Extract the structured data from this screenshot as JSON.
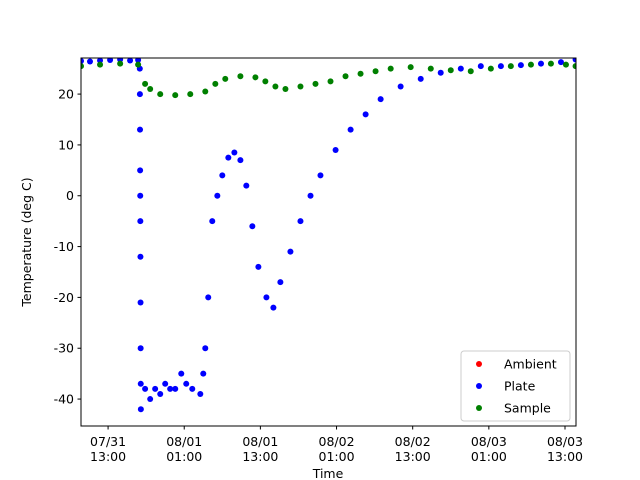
{
  "chart_data": {
    "type": "scatter",
    "x_label": "Time",
    "y_label": "Temperature (deg C)",
    "xlim": [
      "07/31 08:44",
      "08/03 14:44"
    ],
    "xticks": [
      "07/31 13:00",
      "08/01 01:00",
      "08/01 13:00",
      "08/02 01:00",
      "08/02 13:00",
      "08/03 01:00",
      "08/03 13:00"
    ],
    "ylim": [
      -45.3,
      27.1
    ],
    "yticks": [
      -40,
      -30,
      -20,
      -10,
      0,
      10,
      20
    ],
    "legend": "lower right",
    "series": [
      {
        "name": "Ambient",
        "color": "#ff0000",
        "x": [],
        "values": []
      },
      {
        "name": "Plate",
        "color": "#0000ff",
        "x": [
          "07/31 08:44",
          "07/31 10:09",
          "07/31 11:44",
          "07/31 13:19",
          "07/31 14:54",
          "07/31 16:28",
          "07/31 17:44",
          "07/31 18:00",
          "07/31 18:01",
          "07/31 18:02",
          "07/31 18:03",
          "07/31 18:04",
          "07/31 18:05",
          "07/31 18:06",
          "07/31 18:07",
          "07/31 18:08",
          "07/31 18:09",
          "07/31 18:10",
          "07/31 18:50",
          "07/31 19:38",
          "07/31 20:25",
          "07/31 21:13",
          "07/31 22:00",
          "07/31 22:47",
          "07/31 23:35",
          "08/01 00:32",
          "08/01 01:19",
          "08/01 02:16",
          "08/01 03:32",
          "08/01 04:00",
          "08/01 04:19",
          "08/01 04:47",
          "08/01 05:25",
          "08/01 06:13",
          "08/01 07:00",
          "08/01 07:57",
          "08/01 08:54",
          "08/01 09:51",
          "08/01 10:47",
          "08/01 11:44",
          "08/01 12:41",
          "08/01 13:57",
          "08/01 15:03",
          "08/01 16:09",
          "08/01 17:44",
          "08/01 19:19",
          "08/01 20:54",
          "08/01 22:28",
          "08/02 00:51",
          "08/02 03:13",
          "08/02 05:35",
          "08/02 07:57",
          "08/02 11:06",
          "08/02 14:16",
          "08/02 17:25",
          "08/02 20:35",
          "08/02 23:44",
          "08/03 02:54",
          "08/03 06:03",
          "08/03 09:13",
          "08/03 12:22",
          "08/03 14:40"
        ],
        "values": [
          26.5,
          26.4,
          26.6,
          26.7,
          26.8,
          26.6,
          26.7,
          25,
          20,
          13,
          5,
          0,
          -5,
          -12,
          -21,
          -30,
          -37,
          -42,
          -38,
          -40,
          -38,
          -39,
          -37,
          -38,
          -38,
          -35,
          -37,
          -38,
          -39,
          -35,
          -30,
          -20,
          -5,
          0,
          4,
          7.5,
          8.5,
          7,
          2,
          -6,
          -14,
          -20,
          -22,
          -17,
          -11,
          -5,
          0,
          4,
          9,
          13,
          16,
          19,
          21.5,
          23,
          24.2,
          25,
          25.5,
          25.5,
          25.7,
          26,
          26.3,
          26.8
        ]
      },
      {
        "name": "Sample",
        "color": "#008000",
        "x": [
          "07/31 08:44",
          "07/31 11:44",
          "07/31 14:54",
          "07/31 17:44",
          "07/31 18:50",
          "07/31 19:38",
          "07/31 21:13",
          "07/31 23:35",
          "08/01 01:57",
          "08/01 04:19",
          "08/01 05:54",
          "08/01 07:28",
          "08/01 09:51",
          "08/01 12:13",
          "08/01 13:47",
          "08/01 15:22",
          "08/01 16:57",
          "08/01 19:19",
          "08/01 21:41",
          "08/02 00:03",
          "08/02 02:25",
          "08/02 04:47",
          "08/02 07:09",
          "08/02 09:32",
          "08/02 12:41",
          "08/02 15:51",
          "08/02 19:00",
          "08/02 22:09",
          "08/03 01:19",
          "08/03 04:28",
          "08/03 07:38",
          "08/03 10:47",
          "08/03 13:09",
          "08/03 14:40"
        ],
        "values": [
          25.5,
          25.8,
          26,
          25.8,
          22,
          21,
          20,
          19.8,
          20,
          20.5,
          22,
          23,
          23.5,
          23.3,
          22.5,
          21.5,
          21,
          21.5,
          22,
          22.5,
          23.5,
          24,
          24.5,
          25,
          25.3,
          25,
          24.7,
          24.5,
          25,
          25.5,
          25.8,
          26,
          25.8,
          25.5
        ]
      }
    ]
  }
}
